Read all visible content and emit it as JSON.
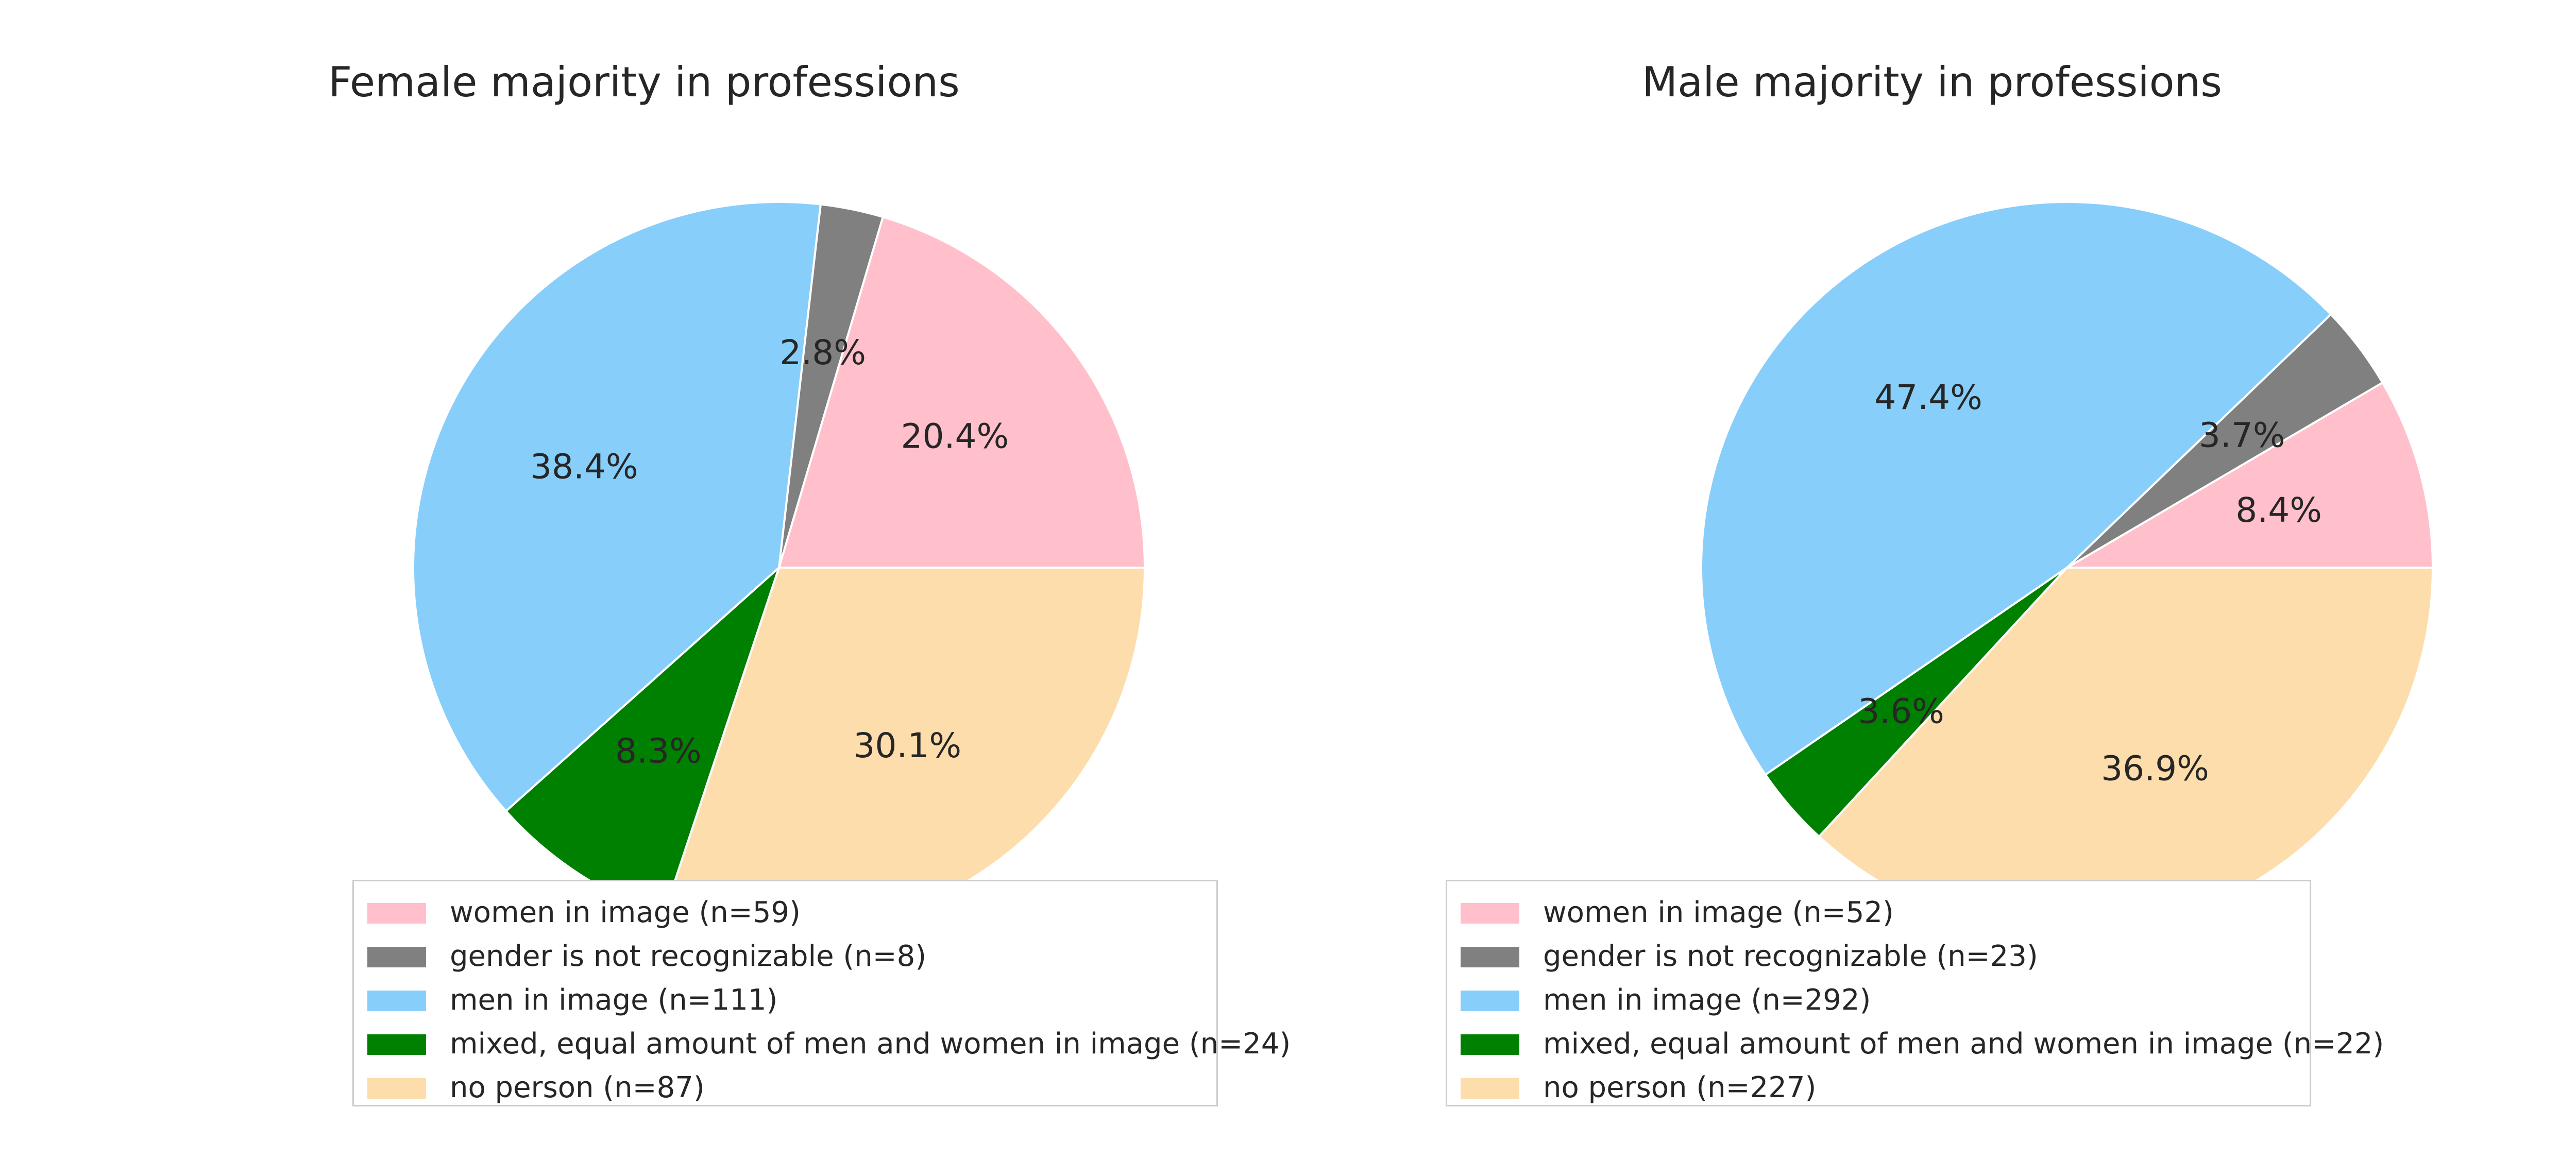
{
  "chart_data": [
    {
      "type": "pie",
      "title": "Female majority in professions",
      "labels": [
        "women in image (n=59)",
        "gender is not recognizable (n=8)",
        "men in image (n=111)",
        "mixed, equal amount of men and women in image (n=24)",
        "no person (n=87)"
      ],
      "values": [
        59,
        8,
        111,
        24,
        87
      ],
      "percent_labels": [
        "20.4%",
        "2.8%",
        "38.4%",
        "8.3%",
        "30.1%"
      ],
      "colors": [
        "#ffc0cb",
        "#808080",
        "#87cefa",
        "#008000",
        "#fdddab"
      ],
      "legend_position": "bottom"
    },
    {
      "type": "pie",
      "title": "Male majority in professions",
      "labels": [
        "women in image (n=52)",
        "gender is not recognizable (n=23)",
        "men in image (n=292)",
        "mixed, equal amount of men and women in image (n=22)",
        "no person (n=227)"
      ],
      "values": [
        52,
        23,
        292,
        22,
        227
      ],
      "percent_labels": [
        "8.4%",
        "3.7%",
        "47.4%",
        "3.6%",
        "36.9%"
      ],
      "colors": [
        "#ffc0cb",
        "#808080",
        "#87cefa",
        "#008000",
        "#fdddab"
      ],
      "legend_position": "bottom"
    }
  ]
}
